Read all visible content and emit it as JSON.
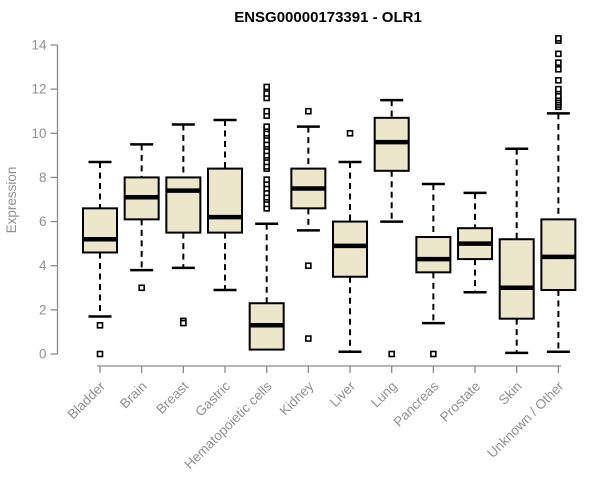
{
  "chart_data": {
    "type": "boxplot",
    "title": "ENSG00000173391 - OLR1",
    "ylabel": "Expression",
    "xlabel": "",
    "ylim": [
      0,
      14
    ],
    "yticks": [
      0,
      2,
      4,
      6,
      8,
      10,
      12,
      14
    ],
    "grid": false,
    "legend": false,
    "categories": [
      "Bladder",
      "Brain",
      "Breast",
      "Gastric",
      "Hematopoietic cells",
      "Kidney",
      "Liver",
      "Lung",
      "Pancreas",
      "Prostate",
      "Skin",
      "Unknown / Other"
    ],
    "boxes": [
      {
        "category": "Bladder",
        "whisker_low": 1.7,
        "q1": 4.6,
        "median": 5.2,
        "q3": 6.6,
        "whisker_high": 8.7,
        "outliers": [
          1.3,
          0.0
        ]
      },
      {
        "category": "Brain",
        "whisker_low": 3.8,
        "q1": 6.1,
        "median": 7.1,
        "q3": 8.0,
        "whisker_high": 9.5,
        "outliers": [
          3.0
        ]
      },
      {
        "category": "Breast",
        "whisker_low": 3.9,
        "q1": 5.5,
        "median": 7.4,
        "q3": 8.0,
        "whisker_high": 10.4,
        "outliers": [
          1.5,
          1.4
        ]
      },
      {
        "category": "Gastric",
        "whisker_low": 2.9,
        "q1": 5.5,
        "median": 6.2,
        "q3": 8.4,
        "whisker_high": 10.6,
        "outliers": []
      },
      {
        "category": "Hematopoietic cells",
        "whisker_low": 0.2,
        "q1": 0.2,
        "median": 1.3,
        "q3": 2.3,
        "whisker_high": 5.9,
        "outliers": [
          6.6,
          6.8,
          7.0,
          7.1,
          7.3,
          7.5,
          7.7,
          7.9,
          8.4,
          8.5,
          8.7,
          8.9,
          9.0,
          9.2,
          9.4,
          9.5,
          9.7,
          9.9,
          10.0,
          10.2,
          10.3,
          10.8,
          11.0,
          11.6,
          11.8,
          12.1
        ]
      },
      {
        "category": "Kidney",
        "whisker_low": 5.6,
        "q1": 6.6,
        "median": 7.5,
        "q3": 8.4,
        "whisker_high": 10.3,
        "outliers": [
          11.0,
          4.0,
          0.7
        ]
      },
      {
        "category": "Liver",
        "whisker_low": 0.1,
        "q1": 3.5,
        "median": 4.9,
        "q3": 6.0,
        "whisker_high": 8.7,
        "outliers": [
          10.0
        ]
      },
      {
        "category": "Lung",
        "whisker_low": 6.0,
        "q1": 8.3,
        "median": 9.6,
        "q3": 10.7,
        "whisker_high": 11.5,
        "outliers": [
          0.0
        ]
      },
      {
        "category": "Pancreas",
        "whisker_low": 1.4,
        "q1": 3.7,
        "median": 4.3,
        "q3": 5.3,
        "whisker_high": 7.7,
        "outliers": [
          0.0
        ]
      },
      {
        "category": "Prostate",
        "whisker_low": 2.8,
        "q1": 4.3,
        "median": 5.0,
        "q3": 5.7,
        "whisker_high": 7.3,
        "outliers": []
      },
      {
        "category": "Skin",
        "whisker_low": 0.05,
        "q1": 1.6,
        "median": 3.0,
        "q3": 5.2,
        "whisker_high": 9.3,
        "outliers": []
      },
      {
        "category": "Unknown / Other",
        "whisker_low": 0.1,
        "q1": 2.9,
        "median": 4.4,
        "q3": 6.1,
        "whisker_high": 10.9,
        "outliers": [
          11.2,
          11.3,
          11.4,
          11.5,
          11.6,
          11.7,
          11.9,
          12.0,
          12.4,
          12.9,
          13.2,
          13.6,
          14.2,
          14.3
        ]
      }
    ],
    "colors": {
      "box_fill": "#ECE6CA",
      "box_border": "#000000",
      "median": "#000000",
      "whisker": "#000000",
      "outlier": "#000000",
      "axis": "#8a8a8a",
      "axis_text": "#909090",
      "title_text": "#000000",
      "background": "#ffffff"
    }
  }
}
